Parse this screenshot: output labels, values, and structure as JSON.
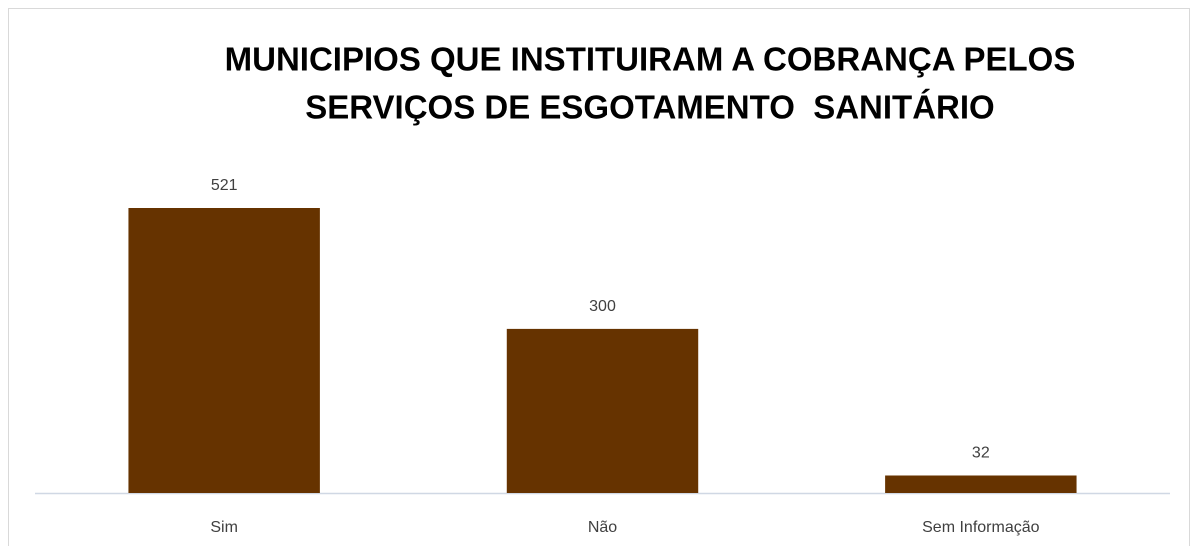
{
  "chart_data": {
    "type": "bar",
    "title": [
      "MUNICIPIOS QUE INSTITUIRAM A COBRANÇA PELOS",
      "SERVIÇOS DE ESGOTAMENTO  SANITÁRIO"
    ],
    "categories": [
      "Sim",
      "Não",
      "Sem Informação"
    ],
    "values": [
      521,
      300,
      32
    ],
    "color": "#663300"
  }
}
